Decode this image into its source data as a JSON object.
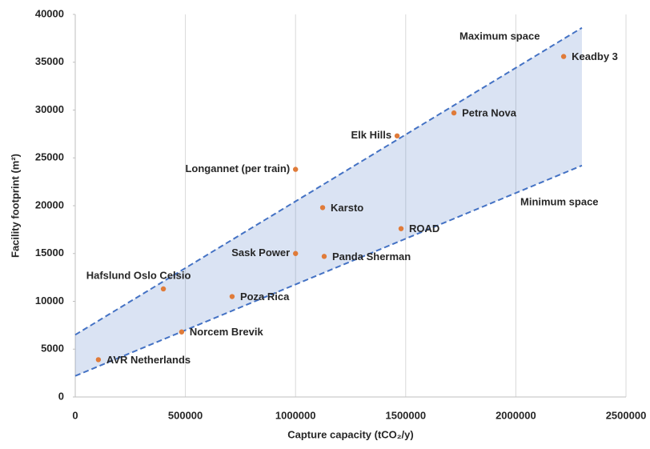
{
  "chart_data": {
    "type": "scatter",
    "x_label": "Capture capacity (tCO₂/y)",
    "y_label": "Facility footprint (m²)",
    "xlim": [
      0,
      2500000
    ],
    "xticks": [
      0,
      500000,
      1000000,
      1500000,
      2000000,
      2500000
    ],
    "ylim": [
      0,
      40000
    ],
    "yticks": [
      0,
      5000,
      10000,
      15000,
      20000,
      25000,
      30000,
      35000,
      40000
    ],
    "grid": "x",
    "color": "#e07b39",
    "points": [
      {
        "name": "AVR Netherlands",
        "x": 105000,
        "y": 3900
      },
      {
        "name": "Norcem Brevik",
        "x": 483000,
        "y": 6800
      },
      {
        "name": "Poza Rica",
        "x": 712000,
        "y": 10500
      },
      {
        "name": "Hafslund Oslo Celsio",
        "x": 400000,
        "y": 11300
      },
      {
        "name": "Sask Power",
        "x": 1000000,
        "y": 15000
      },
      {
        "name": "Panda Sherman",
        "x": 1130000,
        "y": 14700
      },
      {
        "name": "Karsto",
        "x": 1123000,
        "y": 19800
      },
      {
        "name": "ROAD",
        "x": 1479000,
        "y": 17600
      },
      {
        "name": "Longannet (per train)",
        "x": 1000000,
        "y": 23800
      },
      {
        "name": "Elk Hills",
        "x": 1461000,
        "y": 27300
      },
      {
        "name": "Petra Nova",
        "x": 1719000,
        "y": 29700
      },
      {
        "name": "Keadby 3",
        "x": 2217000,
        "y": 35600
      }
    ],
    "band": {
      "color": "#4472c4",
      "x": [
        0,
        2300000
      ],
      "upper": {
        "name": "Maximum space",
        "values": [
          6500,
          38600
        ]
      },
      "lower": {
        "name": "Minimum space",
        "values": [
          2200,
          24200
        ]
      }
    }
  }
}
